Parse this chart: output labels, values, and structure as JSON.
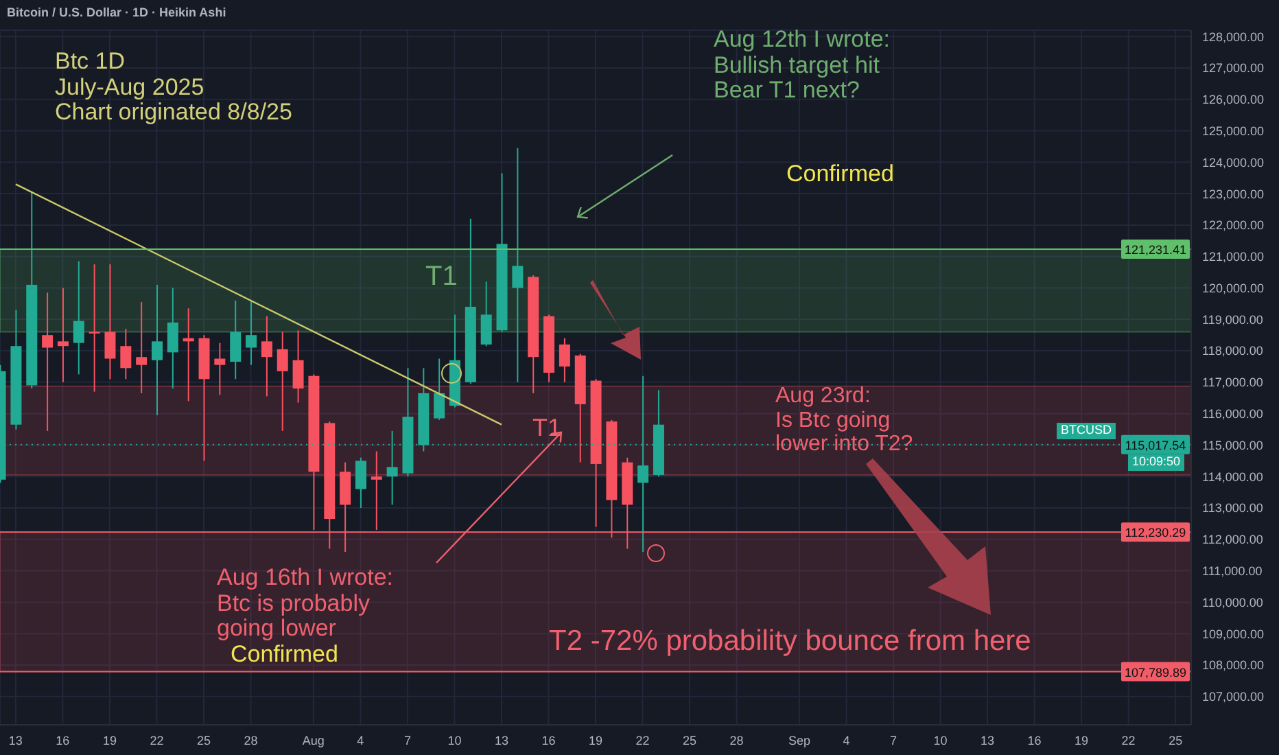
{
  "chart_data": {
    "type": "candlestick",
    "title": "Bitcoin / U.S. Dollar · 1D · Heikin Ashi",
    "x": [
      "2025-07-12",
      "2025-07-13",
      "2025-07-14",
      "2025-07-15",
      "2025-07-16",
      "2025-07-17",
      "2025-07-18",
      "2025-07-19",
      "2025-07-20",
      "2025-07-21",
      "2025-07-22",
      "2025-07-23",
      "2025-07-24",
      "2025-07-25",
      "2025-07-26",
      "2025-07-27",
      "2025-07-28",
      "2025-07-29",
      "2025-07-30",
      "2025-07-31",
      "2025-08-01",
      "2025-08-02",
      "2025-08-03",
      "2025-08-04",
      "2025-08-05",
      "2025-08-06",
      "2025-08-07",
      "2025-08-08",
      "2025-08-09",
      "2025-08-10",
      "2025-08-11",
      "2025-08-12",
      "2025-08-13",
      "2025-08-14",
      "2025-08-15",
      "2025-08-16",
      "2025-08-17",
      "2025-08-18",
      "2025-08-19",
      "2025-08-20",
      "2025-08-21",
      "2025-08-22",
      "2025-08-23"
    ],
    "ohlc": [
      [
        113900,
        117550,
        113800,
        117350
      ],
      [
        115650,
        119300,
        115500,
        118150
      ],
      [
        116900,
        123050,
        116800,
        120100
      ],
      [
        118500,
        119850,
        115450,
        118100
      ],
      [
        118300,
        120000,
        117000,
        118150
      ],
      [
        118250,
        120850,
        117250,
        118950
      ],
      [
        118600,
        120750,
        116700,
        118550
      ],
      [
        118600,
        120750,
        117100,
        117750
      ],
      [
        118150,
        118700,
        117100,
        117450
      ],
      [
        117800,
        119550,
        116650,
        117550
      ],
      [
        117700,
        120100,
        115950,
        118300
      ],
      [
        117950,
        120000,
        116800,
        118900
      ],
      [
        118400,
        119350,
        116400,
        118300
      ],
      [
        118400,
        118500,
        114500,
        117100
      ],
      [
        117750,
        118250,
        116600,
        117550
      ],
      [
        117650,
        119600,
        117100,
        118600
      ],
      [
        118100,
        119600,
        117550,
        118500
      ],
      [
        118300,
        119100,
        116550,
        117800
      ],
      [
        118050,
        118600,
        115450,
        117350
      ],
      [
        117700,
        118650,
        116350,
        116800
      ],
      [
        117200,
        117250,
        112300,
        114150
      ],
      [
        115700,
        115750,
        111700,
        112650
      ],
      [
        114150,
        114450,
        111600,
        113100
      ],
      [
        113600,
        114600,
        113000,
        114500
      ],
      [
        114000,
        114800,
        112300,
        113900
      ],
      [
        114000,
        115450,
        113100,
        114300
      ],
      [
        114100,
        117450,
        114000,
        115900
      ],
      [
        115000,
        117450,
        114800,
        116650
      ],
      [
        115850,
        117750,
        115800,
        116650
      ],
      [
        116250,
        119150,
        116200,
        117700
      ],
      [
        117000,
        122200,
        116950,
        119400
      ],
      [
        118200,
        120200,
        118150,
        119150
      ],
      [
        118650,
        123650,
        118600,
        121400
      ],
      [
        120000,
        124450,
        117000,
        120700
      ],
      [
        120350,
        120400,
        116650,
        117800
      ],
      [
        119100,
        119150,
        117000,
        117300
      ],
      [
        118200,
        118400,
        117000,
        117500
      ],
      [
        117850,
        117900,
        114450,
        116300
      ],
      [
        117050,
        117100,
        112400,
        114400
      ],
      [
        115750,
        115800,
        112050,
        113250
      ],
      [
        114450,
        114600,
        111700,
        113100
      ],
      [
        113800,
        117200,
        111600,
        114350
      ],
      [
        114050,
        116750,
        114000,
        115650
      ]
    ],
    "series": [
      {
        "type": "line",
        "x": [
          "2025-07-13",
          "2025-08-13"
        ],
        "values": [
          123300,
          115650
        ],
        "color": "#c9c96a"
      }
    ],
    "xlim": [
      "2025-07-12",
      "2025-09-26"
    ],
    "xticks": [
      {
        "value": "2025-07-13",
        "label": "13"
      },
      {
        "value": "2025-07-16",
        "label": "16"
      },
      {
        "value": "2025-07-19",
        "label": "19"
      },
      {
        "value": "2025-07-22",
        "label": "22"
      },
      {
        "value": "2025-07-25",
        "label": "25"
      },
      {
        "value": "2025-07-28",
        "label": "28"
      },
      {
        "value": "2025-08-01",
        "label": "Aug"
      },
      {
        "value": "2025-08-04",
        "label": "4"
      },
      {
        "value": "2025-08-07",
        "label": "7"
      },
      {
        "value": "2025-08-10",
        "label": "10"
      },
      {
        "value": "2025-08-13",
        "label": "13"
      },
      {
        "value": "2025-08-16",
        "label": "16"
      },
      {
        "value": "2025-08-19",
        "label": "19"
      },
      {
        "value": "2025-08-22",
        "label": "22"
      },
      {
        "value": "2025-08-25",
        "label": "25"
      },
      {
        "value": "2025-08-28",
        "label": "28"
      },
      {
        "value": "2025-09-01",
        "label": "Sep"
      },
      {
        "value": "2025-09-04",
        "label": "4"
      },
      {
        "value": "2025-09-07",
        "label": "7"
      },
      {
        "value": "2025-09-10",
        "label": "10"
      },
      {
        "value": "2025-09-13",
        "label": "13"
      },
      {
        "value": "2025-09-16",
        "label": "16"
      },
      {
        "value": "2025-09-19",
        "label": "19"
      },
      {
        "value": "2025-09-22",
        "label": "22"
      },
      {
        "value": "2025-09-25",
        "label": "25"
      }
    ],
    "ylim": [
      106100,
      128200
    ],
    "yticks": [
      {
        "value": 107000,
        "label": "107,000.00"
      },
      {
        "value": 108000,
        "label": "108,000.00"
      },
      {
        "value": 109000,
        "label": "109,000.00"
      },
      {
        "value": 110000,
        "label": "110,000.00"
      },
      {
        "value": 111000,
        "label": "111,000.00"
      },
      {
        "value": 112000,
        "label": "112,000.00"
      },
      {
        "value": 113000,
        "label": "113,000.00"
      },
      {
        "value": 114000,
        "label": "114,000.00"
      },
      {
        "value": 115000,
        "label": "115,000.00"
      },
      {
        "value": 116000,
        "label": "116,000.00"
      },
      {
        "value": 117000,
        "label": "117,000.00"
      },
      {
        "value": 118000,
        "label": "118,000.00"
      },
      {
        "value": 119000,
        "label": "119,000.00"
      },
      {
        "value": 120000,
        "label": "120,000.00"
      },
      {
        "value": 121000,
        "label": "121,000.00"
      },
      {
        "value": 122000,
        "label": "122,000.00"
      },
      {
        "value": 123000,
        "label": "123,000.00"
      },
      {
        "value": 124000,
        "label": "124,000.00"
      },
      {
        "value": 125000,
        "label": "125,000.00"
      },
      {
        "value": 126000,
        "label": "126,000.00"
      },
      {
        "value": 127000,
        "label": "127,000.00"
      },
      {
        "value": 128000,
        "label": "128,000.00"
      }
    ],
    "grid": true,
    "ref_lines": [
      {
        "axis": "y",
        "value": 121231.41,
        "label": "121,231.41",
        "color": "#5fbf6a"
      },
      {
        "axis": "y",
        "value": 115017.54,
        "label": "115,017.54",
        "color": "#22ab94",
        "line_style": "dotted"
      },
      {
        "axis": "y",
        "value": 112230.29,
        "label": "112,230.29",
        "color": "#f25c68"
      },
      {
        "axis": "y",
        "value": 107789.89,
        "label": "107,789.89",
        "color": "#f25c68"
      }
    ],
    "bands": [
      {
        "axis": "y",
        "from": 118600,
        "to": 121231.41,
        "label": "T1",
        "color": "#4e9a5a"
      },
      {
        "axis": "y",
        "from": 114050,
        "to": 116870,
        "label": "T1",
        "color": "#a8404c"
      },
      {
        "axis": "y",
        "from": 107789.89,
        "to": 112230.29,
        "label": "T2 -72% probability bounce from here",
        "color": "#a8404c"
      }
    ],
    "annotations": [
      "Btc 1D\nJuly-Aug 2025\nChart originated 8/8/25",
      "Aug 12th I wrote:\nBullish target hit\nBear T1 next?",
      "Confirmed",
      "Aug 16th I wrote:\nBtc is probably\ngoing lower",
      "Confirmed",
      "Aug 23rd:\nIs Btc going\nlower into T2?",
      "BTCUSD",
      "10:09:50"
    ]
  }
}
